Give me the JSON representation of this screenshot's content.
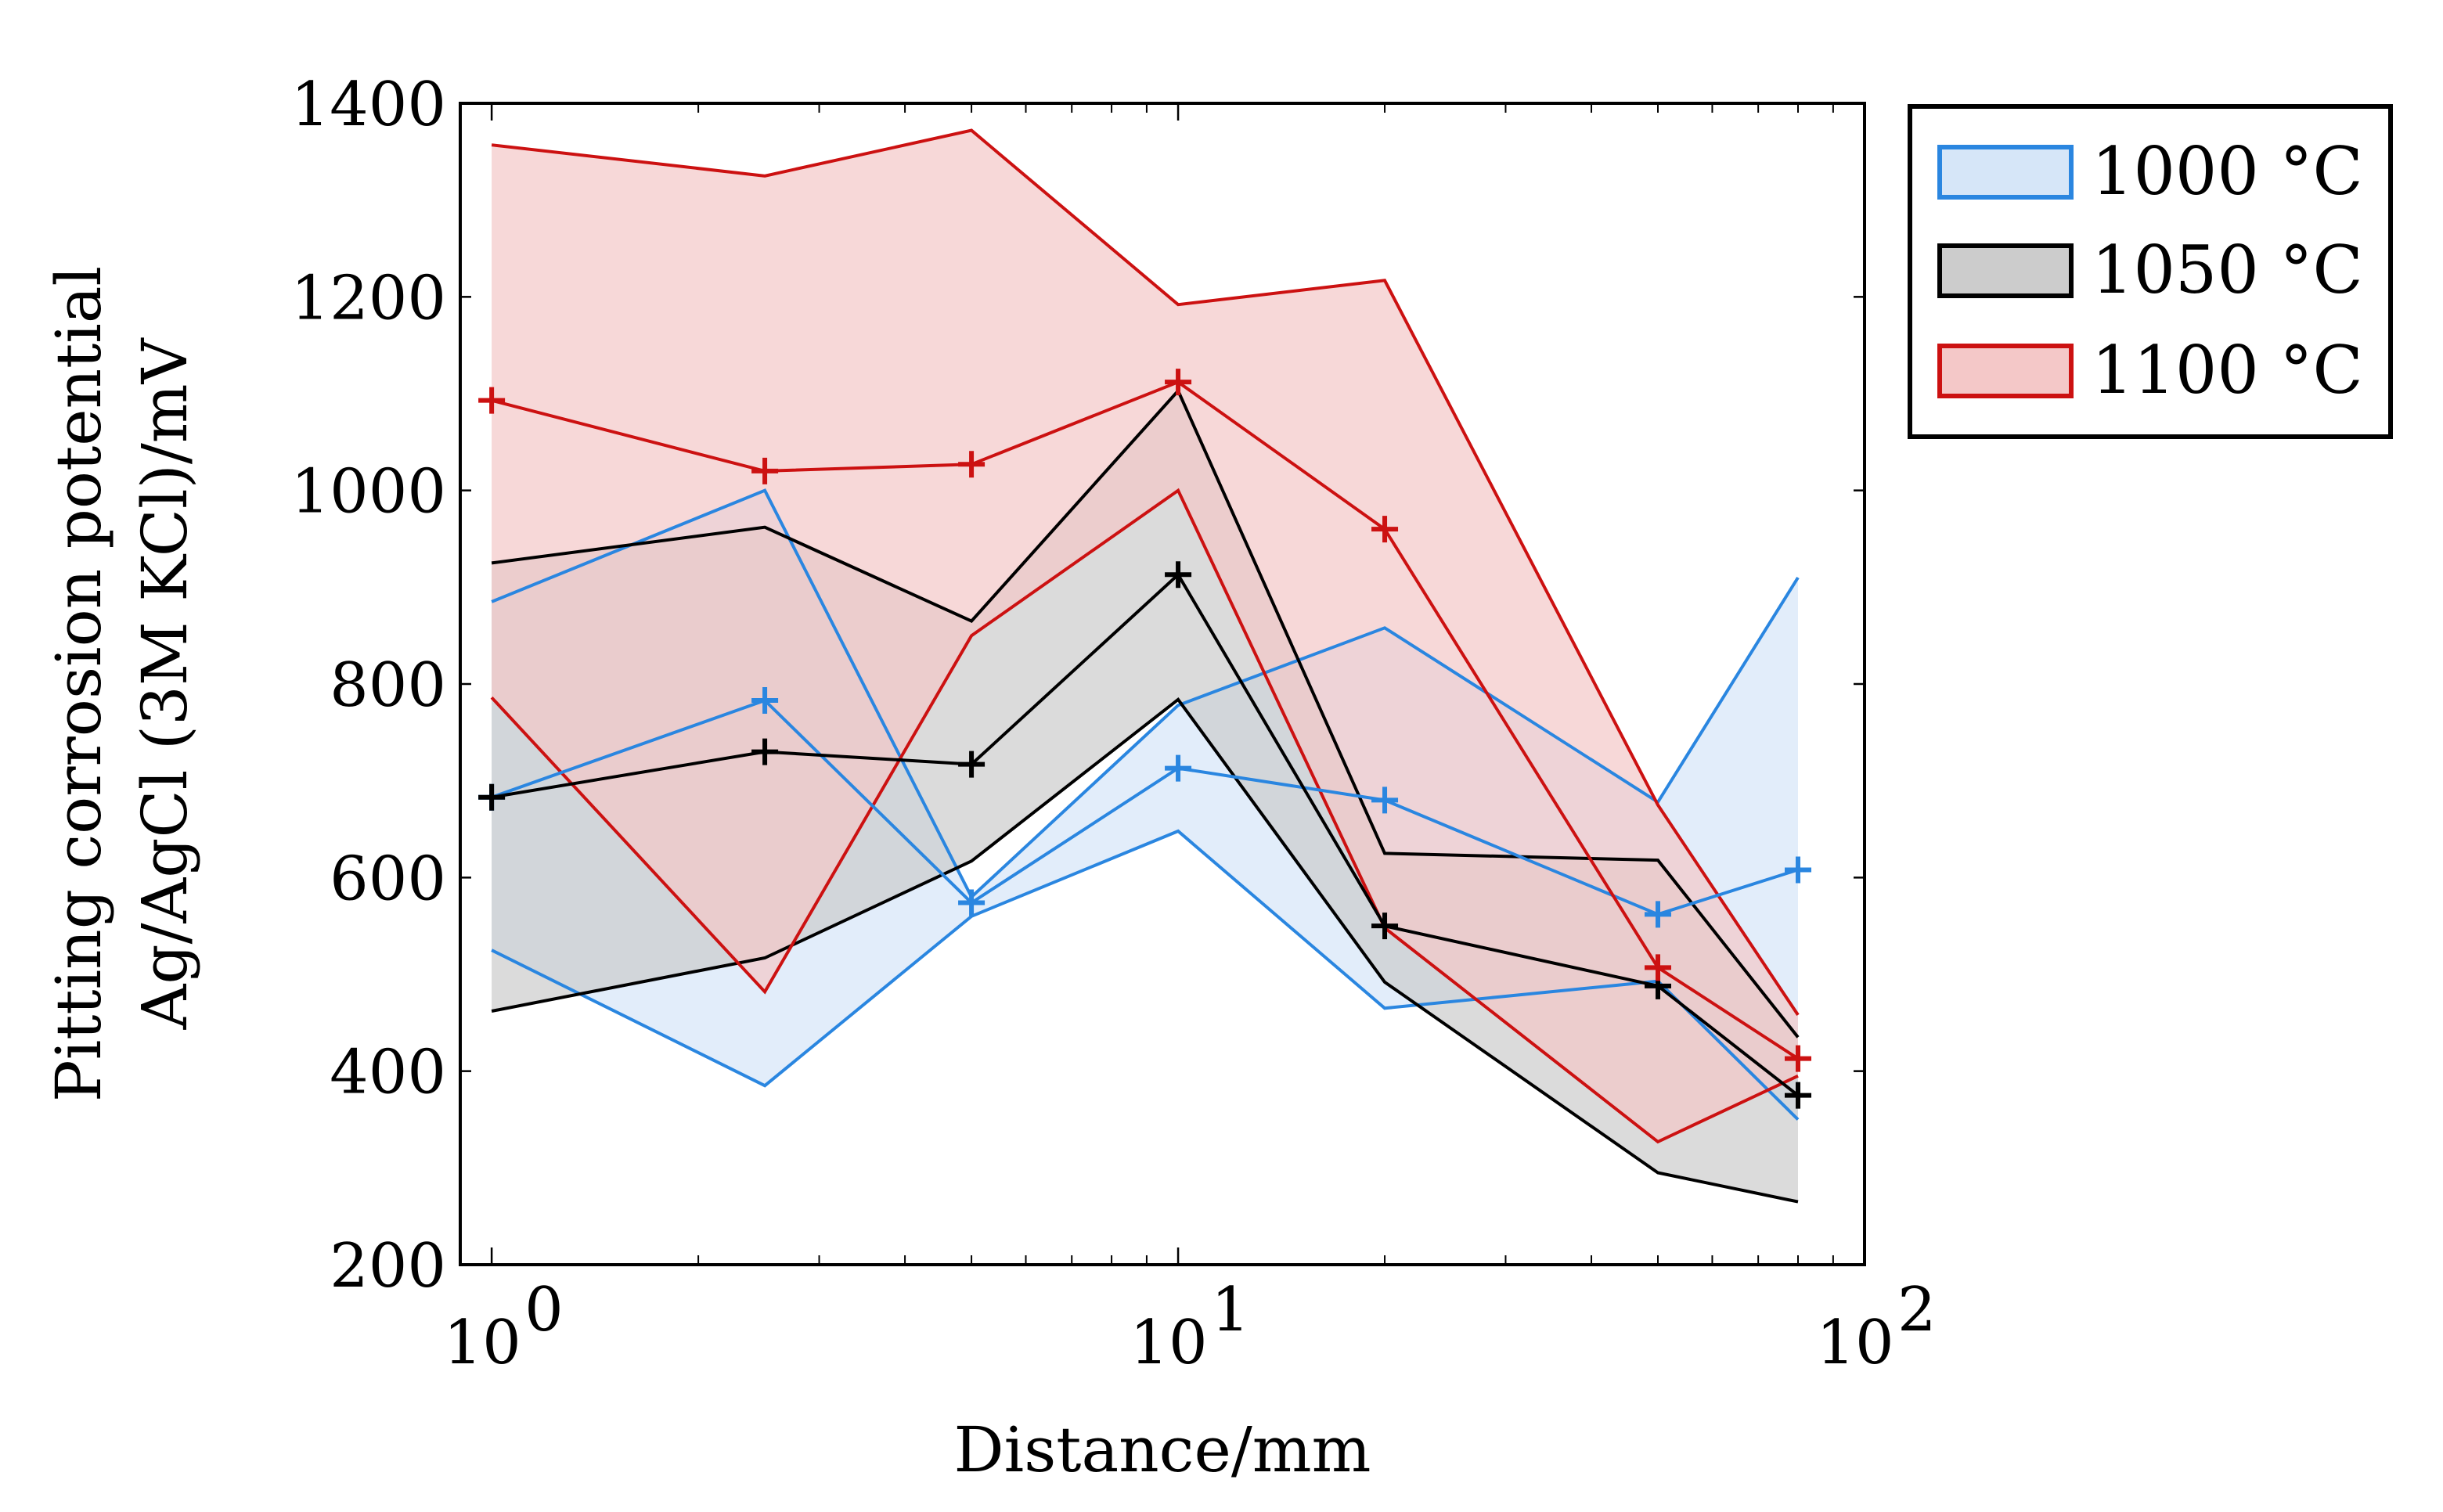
{
  "chart_data": {
    "type": "area",
    "xscale": "log",
    "xlim": [
      0.9,
      100
    ],
    "ylim": [
      200,
      1400
    ],
    "xlabel": "Distance/mm",
    "ylabel_line1": "Pitting corrosion potential",
    "ylabel_line2": "Ag/AgCl (3M KCl)/mV",
    "yticks": [
      200,
      400,
      600,
      800,
      1000,
      1200,
      1400
    ],
    "xticks": [
      {
        "value": 1,
        "base": "10",
        "exp": "0"
      },
      {
        "value": 10,
        "base": "10",
        "exp": "1"
      },
      {
        "value": 100,
        "base": "10",
        "exp": "2"
      }
    ],
    "grid": false,
    "legend_position": "outside-top-right",
    "series": [
      {
        "name": "1000 °C",
        "color": "#2a86e0",
        "fill": "#d6e6f8",
        "x": [
          1,
          2.5,
          5,
          10,
          20,
          50,
          80
        ],
        "mean": [
          683,
          783,
          574,
          713,
          680,
          562,
          608
        ],
        "upper": [
          885,
          1000,
          580,
          778,
          858,
          678,
          910
        ],
        "lower": [
          525,
          385,
          560,
          648,
          465,
          493,
          350
        ]
      },
      {
        "name": "1050 °C",
        "color": "#000000",
        "fill": "#cccccc",
        "x": [
          1,
          2.5,
          5,
          10,
          20,
          50,
          80
        ],
        "mean": [
          683,
          730,
          717,
          913,
          550,
          488,
          375
        ],
        "upper": [
          925,
          962,
          865,
          1103,
          625,
          618,
          435
        ],
        "lower": [
          462,
          517,
          617,
          784,
          492,
          295,
          265
        ]
      },
      {
        "name": "1100 °C",
        "color": "#cc1111",
        "fill": "#f4c8c8",
        "x": [
          1,
          2.5,
          5,
          10,
          20,
          50,
          80
        ],
        "mean": [
          1093,
          1020,
          1027,
          1112,
          960,
          507,
          413
        ],
        "upper": [
          1357,
          1325,
          1372,
          1192,
          1217,
          675,
          458
        ],
        "lower": [
          786,
          482,
          850,
          1000,
          548,
          327,
          395
        ]
      }
    ]
  }
}
